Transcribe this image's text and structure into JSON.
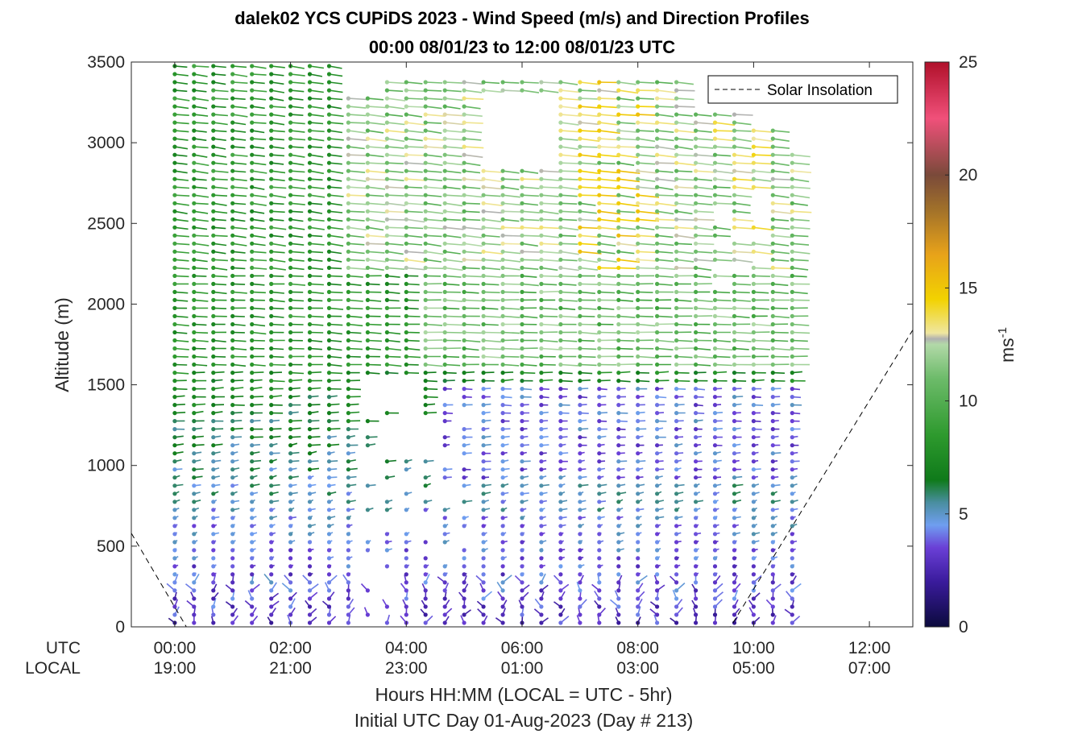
{
  "chart_data": {
    "type": "scatter",
    "title": "dalek02 YCS CUPiDS 2023 - Wind Speed (m/s) and Direction Profiles",
    "subtitle": "00:00 08/01/23 to 12:00 08/01/23  UTC",
    "ylabel": "Altitude (m)",
    "xlabel": "Hours HH:MM  (LOCAL = UTC - 5hr)",
    "xlabel2": "Initial UTC Day 01-Aug-2023 (Day # 213)",
    "ylim": [
      0,
      3500
    ],
    "yticks": [
      "0",
      "500",
      "1000",
      "1500",
      "2000",
      "2500",
      "3000",
      "3500"
    ],
    "x_row_utc_label": "UTC",
    "x_row_local_label": "LOCAL",
    "xticks_utc": [
      "00:00",
      "02:00",
      "04:00",
      "06:00",
      "08:00",
      "10:00",
      "12:00"
    ],
    "xticks_local": [
      "19:00",
      "21:00",
      "23:00",
      "01:00",
      "03:00",
      "05:00",
      "07:00"
    ],
    "xlim_hours": [
      -0.75,
      12.75
    ],
    "legend": {
      "label": "Solar Insolation",
      "placement": "top-right",
      "style": "dashed"
    },
    "colorbar": {
      "label": "ms",
      "label_sup": "-1",
      "min": 0,
      "max": 25,
      "ticks": [
        "0",
        "5",
        "10",
        "15",
        "20",
        "25"
      ]
    },
    "profile_times_hours": [
      0,
      0.333,
      0.667,
      1,
      1.333,
      1.667,
      2,
      2.333,
      2.667,
      3,
      3.333,
      3.667,
      4,
      4.333,
      4.667,
      5,
      5.333,
      5.667,
      6,
      6.333,
      6.667,
      7,
      7.333,
      7.667,
      8,
      8.333,
      8.667,
      9,
      9.333,
      9.667,
      10,
      10.333,
      10.667
    ],
    "profile_altitude_step_m": 50,
    "wind_regimes": [
      {
        "altitude_range_m": [
          0,
          300
        ],
        "speed_ms": "1-4",
        "direction": "variable"
      },
      {
        "altitude_range_m": [
          300,
          1600
        ],
        "speed_ms": "4-9",
        "direction": "southerly to southwesterly"
      },
      {
        "altitude_range_m": [
          1600,
          2200
        ],
        "speed_ms": "7-9",
        "direction": "westerly"
      },
      {
        "altitude_range_m": [
          2200,
          3500
        ],
        "speed_ms": "9-15",
        "direction": "westerly"
      }
    ],
    "solar_insolation": [
      {
        "hour": -0.75,
        "alt": 580
      },
      {
        "hour": 0.2,
        "alt": 0
      },
      {
        "hour": 9.6,
        "alt": 0
      },
      {
        "hour": 12.75,
        "alt": 1840
      }
    ]
  }
}
